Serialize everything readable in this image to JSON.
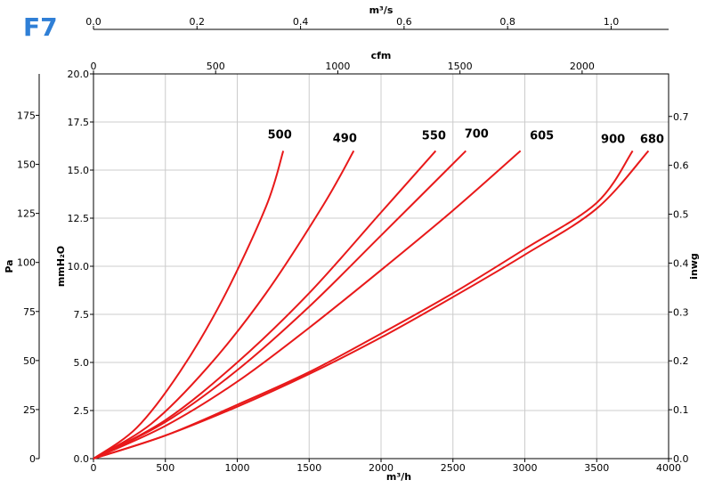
{
  "logo": {
    "text": "F7",
    "color": "#2f7fd6"
  },
  "chart_data": {
    "type": "line",
    "title": "",
    "curve_color": "#e8191a",
    "grid": true,
    "primary_x": {
      "label": "m³/h",
      "range": [
        0,
        4000
      ],
      "ticks": [
        "0",
        "500",
        "1000",
        "1500",
        "2000",
        "2500",
        "3000",
        "3500",
        "4000"
      ]
    },
    "primary_y": {
      "label": "mmH₂O",
      "range": [
        0,
        20
      ],
      "ticks": [
        "0.0",
        "2.5",
        "5.0",
        "7.5",
        "10.0",
        "12.5",
        "15.0",
        "17.5",
        "20.0"
      ]
    },
    "left_y": {
      "label": "Pa",
      "range": [
        0,
        196.1
      ],
      "ticks": [
        "0",
        "25",
        "50",
        "75",
        "100",
        "125",
        "150",
        "175"
      ]
    },
    "right_y": {
      "label": "inwg",
      "range": [
        0,
        0.787
      ],
      "ticks": [
        "0.0",
        "0.1",
        "0.2",
        "0.3",
        "0.4",
        "0.5",
        "0.6",
        "0.7"
      ]
    },
    "top_x_cfm": {
      "label": "cfm",
      "range": [
        0,
        2354
      ],
      "ticks": [
        "0",
        "500",
        "1000",
        "1500",
        "2000"
      ]
    },
    "top_x_m3s": {
      "label": "m³/s",
      "range": [
        0,
        1.111
      ],
      "ticks": [
        "0.0",
        "0.2",
        "0.4",
        "0.6",
        "0.8",
        "1.0"
      ]
    },
    "series": [
      {
        "name": "500",
        "x": [
          0,
          300,
          600,
          900,
          1200,
          1320
        ],
        "y": [
          0,
          1.6,
          4.5,
          8.3,
          13.1,
          16.0
        ]
      },
      {
        "name": "490",
        "x": [
          0,
          400,
          800,
          1200,
          1600,
          1810
        ],
        "y": [
          0,
          1.8,
          4.8,
          8.6,
          13.2,
          16.0
        ]
      },
      {
        "name": "550",
        "x": [
          0,
          500,
          1000,
          1500,
          2000,
          2380
        ],
        "y": [
          0,
          2.0,
          5.0,
          8.6,
          12.8,
          16.0
        ]
      },
      {
        "name": "700",
        "x": [
          0,
          500,
          1000,
          1500,
          2000,
          2590
        ],
        "y": [
          0,
          1.9,
          4.6,
          7.9,
          11.6,
          16.0
        ]
      },
      {
        "name": "605",
        "x": [
          0,
          500,
          1000,
          1500,
          2000,
          2500,
          2970
        ],
        "y": [
          0,
          1.7,
          4.0,
          6.8,
          9.8,
          12.9,
          16.0
        ]
      },
      {
        "name": "900",
        "x": [
          0,
          500,
          1000,
          1500,
          2000,
          2500,
          3000,
          3500,
          3750
        ],
        "y": [
          0,
          1.2,
          2.8,
          4.5,
          6.5,
          8.6,
          10.9,
          13.3,
          16.0
        ]
      },
      {
        "name": "680",
        "x": [
          0,
          500,
          1000,
          1500,
          2000,
          2500,
          3000,
          3500,
          3860
        ],
        "y": [
          0,
          1.2,
          2.7,
          4.4,
          6.3,
          8.4,
          10.6,
          13.0,
          16.0
        ]
      }
    ]
  }
}
